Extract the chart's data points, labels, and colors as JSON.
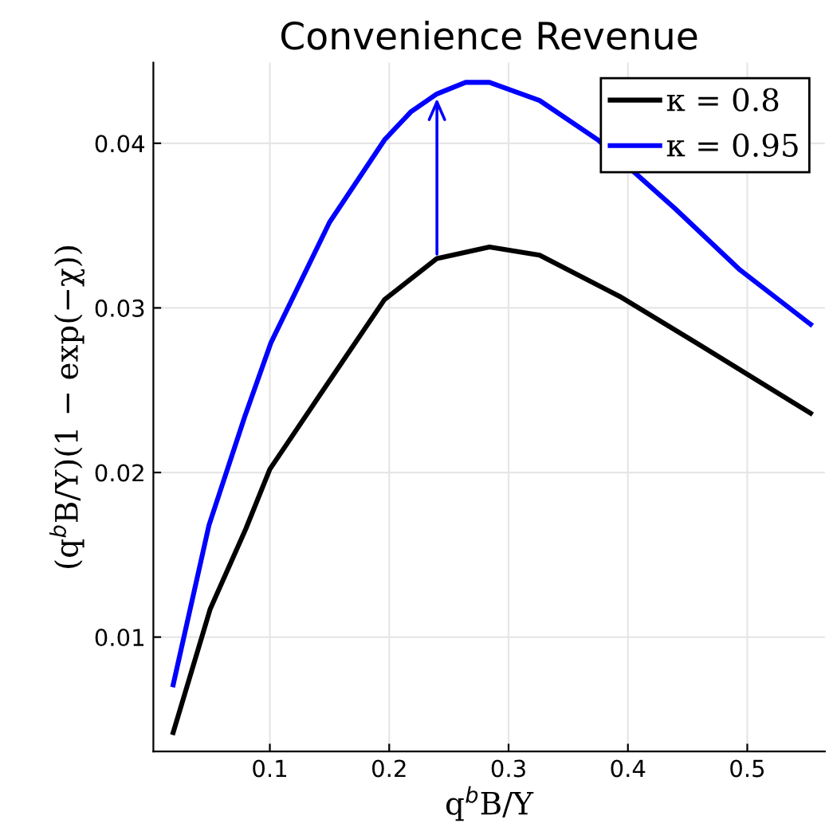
{
  "chart_data": {
    "type": "line",
    "title": "Convenience Revenue",
    "xlabel": "q$^{b}$B/Y",
    "ylabel": "(q$^{b}$B/Y)(1 − exp(−χ))",
    "xlim": [
      0.0024,
      0.565
    ],
    "ylim": [
      0.00305,
      0.0449
    ],
    "xticks": [
      0.1,
      0.2,
      0.3,
      0.4,
      0.5
    ],
    "yticks": [
      0.01,
      0.02,
      0.03,
      0.04
    ],
    "grid": true,
    "legend": "top right",
    "line_style": "solid",
    "marker": "none",
    "series": [
      {
        "name": "κ = 0.8",
        "color": "#000000",
        "x": [
          0.019,
          0.05,
          0.08,
          0.1,
          0.14,
          0.196,
          0.24,
          0.284,
          0.326,
          0.393,
          0.459,
          0.553
        ],
        "values": [
          0.0042,
          0.0117,
          0.0166,
          0.0202,
          0.0245,
          0.0305,
          0.033,
          0.0337,
          0.0332,
          0.0307,
          0.0278,
          0.0236
        ]
      },
      {
        "name": "κ = 0.95",
        "color": "#0000ff",
        "x": [
          0.019,
          0.049,
          0.079,
          0.101,
          0.15,
          0.196,
          0.218,
          0.24,
          0.264,
          0.284,
          0.326,
          0.375,
          0.44,
          0.494,
          0.553
        ],
        "values": [
          0.0071,
          0.0168,
          0.0234,
          0.0279,
          0.0352,
          0.0402,
          0.0419,
          0.043,
          0.0437,
          0.0437,
          0.0426,
          0.0402,
          0.036,
          0.0323,
          0.029
        ]
      }
    ]
  }
}
